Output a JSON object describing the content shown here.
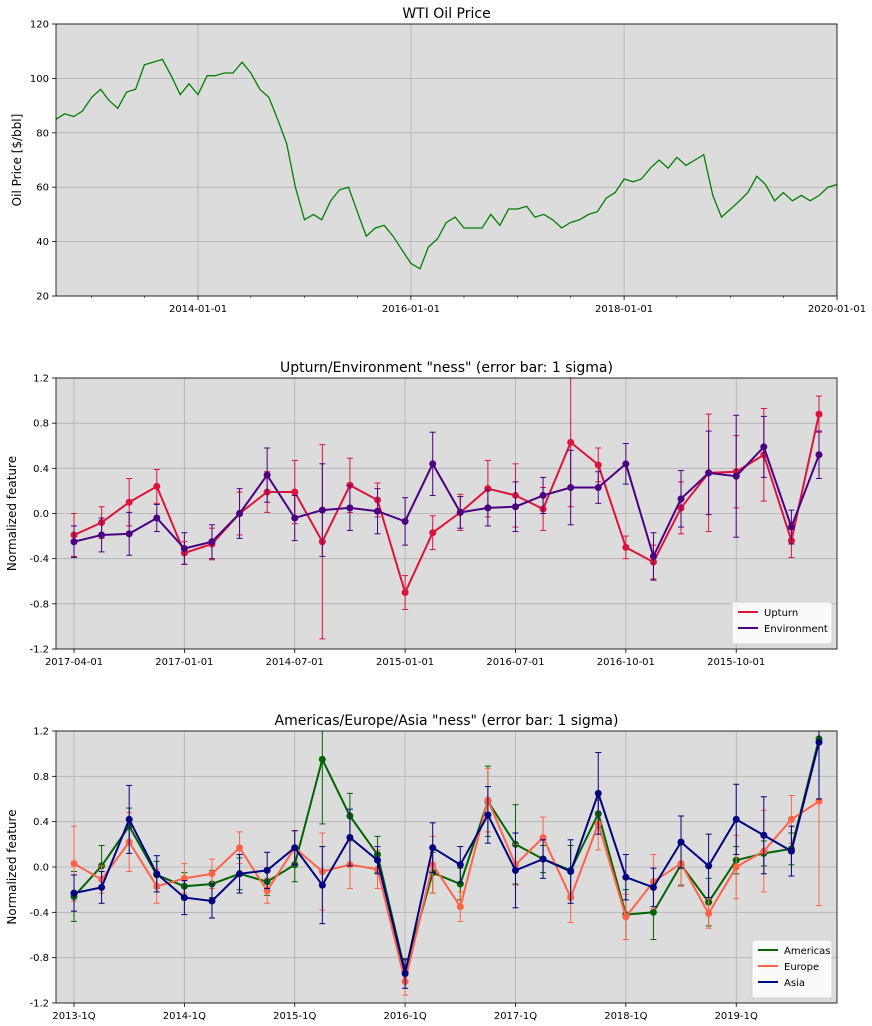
{
  "chart_data": [
    {
      "type": "line",
      "title": "WTI Oil Price",
      "xlabel": "",
      "ylabel": "Oil Price [$/bbl]",
      "ylim": [
        20,
        120
      ],
      "yticks": [
        20,
        40,
        60,
        80,
        100,
        120
      ],
      "xlim": [
        "2012-09-01",
        "2020-01-01"
      ],
      "xticks": [
        "2014-01-01",
        "2016-01-01",
        "2018-01-01",
        "2020-01-01"
      ],
      "grid": true,
      "series": [
        {
          "color": "#008000",
          "points": [
            [
              "2012-09-01",
              85
            ],
            [
              "2012-10-01",
              87
            ],
            [
              "2012-11-01",
              86
            ],
            [
              "2012-12-01",
              88
            ],
            [
              "2013-01-01",
              93
            ],
            [
              "2013-02-01",
              96
            ],
            [
              "2013-03-01",
              92
            ],
            [
              "2013-04-01",
              89
            ],
            [
              "2013-05-01",
              95
            ],
            [
              "2013-06-01",
              96
            ],
            [
              "2013-07-01",
              105
            ],
            [
              "2013-08-01",
              106
            ],
            [
              "2013-09-01",
              107
            ],
            [
              "2013-10-01",
              101
            ],
            [
              "2013-11-01",
              94
            ],
            [
              "2013-12-01",
              98
            ],
            [
              "2014-01-01",
              94
            ],
            [
              "2014-02-01",
              101
            ],
            [
              "2014-03-01",
              101
            ],
            [
              "2014-04-01",
              102
            ],
            [
              "2014-05-01",
              102
            ],
            [
              "2014-06-01",
              106
            ],
            [
              "2014-07-01",
              102
            ],
            [
              "2014-08-01",
              96
            ],
            [
              "2014-09-01",
              93
            ],
            [
              "2014-10-01",
              85
            ],
            [
              "2014-11-01",
              76
            ],
            [
              "2014-12-01",
              60
            ],
            [
              "2015-01-01",
              48
            ],
            [
              "2015-02-01",
              50
            ],
            [
              "2015-03-01",
              48
            ],
            [
              "2015-04-01",
              55
            ],
            [
              "2015-05-01",
              59
            ],
            [
              "2015-06-01",
              60
            ],
            [
              "2015-07-01",
              51
            ],
            [
              "2015-08-01",
              42
            ],
            [
              "2015-09-01",
              45
            ],
            [
              "2015-10-01",
              46
            ],
            [
              "2015-11-01",
              42
            ],
            [
              "2015-12-01",
              37
            ],
            [
              "2016-01-01",
              32
            ],
            [
              "2016-02-01",
              30
            ],
            [
              "2016-03-01",
              38
            ],
            [
              "2016-04-01",
              41
            ],
            [
              "2016-05-01",
              47
            ],
            [
              "2016-06-01",
              49
            ],
            [
              "2016-07-01",
              45
            ],
            [
              "2016-08-01",
              45
            ],
            [
              "2016-09-01",
              45
            ],
            [
              "2016-10-01",
              50
            ],
            [
              "2016-11-01",
              46
            ],
            [
              "2016-12-01",
              52
            ],
            [
              "2017-01-01",
              52
            ],
            [
              "2017-02-01",
              53
            ],
            [
              "2017-03-01",
              49
            ],
            [
              "2017-04-01",
              50
            ],
            [
              "2017-05-01",
              48
            ],
            [
              "2017-06-01",
              45
            ],
            [
              "2017-07-01",
              47
            ],
            [
              "2017-08-01",
              48
            ],
            [
              "2017-09-01",
              50
            ],
            [
              "2017-10-01",
              51
            ],
            [
              "2017-11-01",
              56
            ],
            [
              "2017-12-01",
              58
            ],
            [
              "2018-01-01",
              63
            ],
            [
              "2018-02-01",
              62
            ],
            [
              "2018-03-01",
              63
            ],
            [
              "2018-04-01",
              67
            ],
            [
              "2018-05-01",
              70
            ],
            [
              "2018-06-01",
              67
            ],
            [
              "2018-07-01",
              71
            ],
            [
              "2018-08-01",
              68
            ],
            [
              "2018-09-01",
              70
            ],
            [
              "2018-10-01",
              72
            ],
            [
              "2018-11-01",
              57
            ],
            [
              "2018-12-01",
              49
            ],
            [
              "2019-01-01",
              52
            ],
            [
              "2019-02-01",
              55
            ],
            [
              "2019-03-01",
              58
            ],
            [
              "2019-04-01",
              64
            ],
            [
              "2019-05-01",
              61
            ],
            [
              "2019-06-01",
              55
            ],
            [
              "2019-07-01",
              58
            ],
            [
              "2019-08-01",
              55
            ],
            [
              "2019-09-01",
              57
            ],
            [
              "2019-10-01",
              55
            ],
            [
              "2019-11-01",
              57
            ],
            [
              "2019-12-01",
              60
            ],
            [
              "2020-01-01",
              61
            ]
          ]
        }
      ]
    },
    {
      "type": "line",
      "title": "Upturn/Environment \"ness\" (error bar: 1 sigma)",
      "xlabel": "",
      "ylabel": "Normalized feature",
      "ylim": [
        -1.2,
        1.2
      ],
      "yticks": [
        -1.2,
        -0.8,
        -0.4,
        0.0,
        0.4,
        0.8,
        1.2
      ],
      "xticks": [
        {
          "index": 0,
          "label": "2017-04-01"
        },
        {
          "index": 4,
          "label": "2017-01-01"
        },
        {
          "index": 8,
          "label": "2014-07-01"
        },
        {
          "index": 12,
          "label": "2015-01-01"
        },
        {
          "index": 16,
          "label": "2016-07-01"
        },
        {
          "index": 20,
          "label": "2016-10-01"
        },
        {
          "index": 24,
          "label": "2015-10-01"
        }
      ],
      "x_count": 28,
      "grid": true,
      "legend_position": "bottom-right",
      "series": [
        {
          "name": "Upturn",
          "color": "#dc143c",
          "values": [
            -0.19,
            -0.08,
            0.1,
            0.24,
            -0.35,
            -0.27,
            0.0,
            0.19,
            0.19,
            -0.25,
            0.25,
            0.12,
            -0.7,
            -0.17,
            0.01,
            0.22,
            0.16,
            0.04,
            0.63,
            0.43,
            -0.3,
            -0.43,
            0.05,
            0.36,
            0.37,
            0.52,
            -0.24,
            0.88
          ],
          "errors": [
            0.19,
            0.14,
            0.21,
            0.15,
            0.1,
            0.14,
            0.19,
            0.18,
            0.28,
            0.86,
            0.24,
            0.15,
            0.15,
            0.15,
            0.16,
            0.25,
            0.28,
            0.19,
            0.57,
            0.15,
            0.1,
            0.15,
            0.23,
            0.52,
            0.32,
            0.41,
            0.15,
            0.16
          ]
        },
        {
          "name": "Environment",
          "color": "#4b0082",
          "values": [
            -0.25,
            -0.19,
            -0.18,
            -0.04,
            -0.31,
            -0.25,
            0.0,
            0.34,
            -0.04,
            0.03,
            0.05,
            0.02,
            -0.07,
            0.44,
            0.01,
            0.05,
            0.06,
            0.16,
            0.23,
            0.23,
            0.44,
            -0.38,
            0.13,
            0.36,
            0.33,
            0.59,
            -0.12,
            0.52
          ],
          "errors": [
            0.14,
            0.15,
            0.19,
            0.12,
            0.14,
            0.15,
            0.22,
            0.24,
            0.2,
            0.41,
            0.2,
            0.2,
            0.21,
            0.28,
            0.14,
            0.16,
            0.22,
            0.16,
            0.33,
            0.14,
            0.18,
            0.21,
            0.25,
            0.37,
            0.54,
            0.27,
            0.15,
            0.21
          ]
        }
      ]
    },
    {
      "type": "line",
      "title": "Americas/Europe/Asia \"ness\" (error bar: 1 sigma)",
      "xlabel": "",
      "ylabel": "Normalized feature",
      "ylim": [
        -1.2,
        1.2
      ],
      "yticks": [
        -1.2,
        -0.8,
        -0.4,
        0.0,
        0.4,
        0.8,
        1.2
      ],
      "xticks": [
        {
          "index": 0,
          "label": "2013-1Q"
        },
        {
          "index": 4,
          "label": "2014-1Q"
        },
        {
          "index": 8,
          "label": "2015-1Q"
        },
        {
          "index": 12,
          "label": "2016-1Q"
        },
        {
          "index": 16,
          "label": "2017-1Q"
        },
        {
          "index": 20,
          "label": "2018-1Q"
        },
        {
          "index": 24,
          "label": "2019-1Q"
        }
      ],
      "x_count": 28,
      "grid": true,
      "legend_position": "bottom-right",
      "series": [
        {
          "name": "Americas",
          "color": "#006400",
          "values": [
            -0.26,
            0.01,
            0.36,
            -0.07,
            -0.17,
            -0.15,
            -0.06,
            -0.13,
            0.02,
            0.95,
            0.45,
            0.11,
            -0.92,
            -0.05,
            -0.15,
            0.58,
            0.2,
            0.07,
            -0.03,
            0.47,
            -0.42,
            -0.4,
            0.02,
            -0.31,
            0.06,
            0.12,
            0.16,
            1.13
          ],
          "errors": [
            0.22,
            0.18,
            0.16,
            0.12,
            0.12,
            0.12,
            0.14,
            0.12,
            0.15,
            0.57,
            0.2,
            0.16,
            0.1,
            0.18,
            0.14,
            0.31,
            0.35,
            0.12,
            0.22,
            0.12,
            0.22,
            0.24,
            0.18,
            0.21,
            0.12,
            0.11,
            0.14,
            0.55
          ]
        },
        {
          "name": "Europe",
          "color": "#ff6347",
          "values": [
            0.03,
            -0.11,
            0.22,
            -0.17,
            -0.1,
            -0.06,
            0.17,
            -0.21,
            0.17,
            -0.04,
            0.02,
            -0.02,
            -1.01,
            0.02,
            -0.35,
            0.59,
            0.02,
            0.26,
            -0.27,
            0.38,
            -0.44,
            -0.13,
            0.03,
            -0.41,
            0.0,
            0.14,
            0.42,
            0.58
          ],
          "errors": [
            0.33,
            0.12,
            0.26,
            0.15,
            0.13,
            0.13,
            0.14,
            0.11,
            0.15,
            0.34,
            0.21,
            0.17,
            0.12,
            0.25,
            0.13,
            0.28,
            0.18,
            0.18,
            0.22,
            0.23,
            0.2,
            0.24,
            0.2,
            0.13,
            0.28,
            0.36,
            0.21,
            0.92
          ]
        },
        {
          "name": "Asia",
          "color": "#000080",
          "values": [
            -0.23,
            -0.18,
            0.42,
            -0.06,
            -0.27,
            -0.3,
            -0.06,
            -0.03,
            0.17,
            -0.16,
            0.26,
            0.06,
            -0.94,
            0.17,
            0.02,
            0.46,
            -0.03,
            0.07,
            -0.04,
            0.65,
            -0.09,
            -0.18,
            0.22,
            0.01,
            0.42,
            0.28,
            0.14,
            1.1
          ],
          "errors": [
            0.16,
            0.14,
            0.3,
            0.16,
            0.15,
            0.15,
            0.17,
            0.16,
            0.15,
            0.34,
            0.25,
            0.12,
            0.13,
            0.22,
            0.16,
            0.25,
            0.33,
            0.17,
            0.28,
            0.36,
            0.2,
            0.17,
            0.23,
            0.28,
            0.31,
            0.34,
            0.22,
            0.5
          ]
        }
      ]
    }
  ]
}
